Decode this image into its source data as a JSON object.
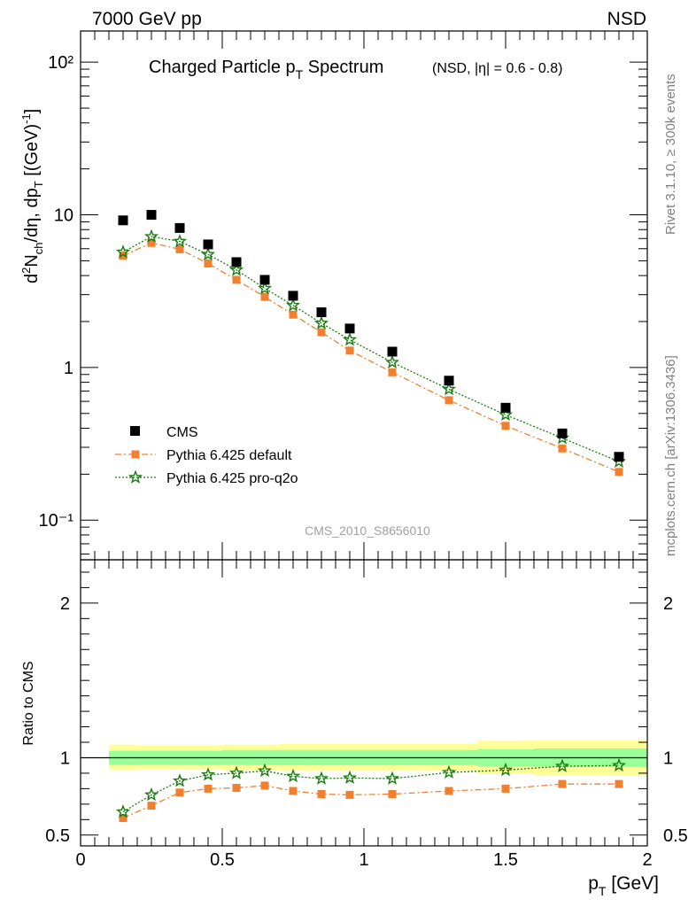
{
  "header": {
    "left": "7000 GeV pp",
    "right": "NSD"
  },
  "side_text": {
    "rivet": "Rivet 3.1.10, ≥ 300k events",
    "mcplots": "mcplots.cern.ch [arXiv:1306.3436]"
  },
  "title": {
    "main_a": "Charged Particle p",
    "main_sub": "T",
    "main_b": " Spectrum",
    "qualifier": "(NSD, |η| = 0.6 - 0.8)"
  },
  "watermark": "CMS_2010_S8656010",
  "ylabel_top": {
    "a": "d",
    "sup2": "2",
    "b": "N",
    "sub_ch": "ch",
    "c": "/dη, dp",
    "sub_t": "T",
    "d": " [(GeV)",
    "sup_exp": "-1",
    "e": "]"
  },
  "ylabel_bottom": "Ratio to CMS",
  "xlabel": {
    "a": "p",
    "sub": "T",
    "b": " [GeV]"
  },
  "legend": [
    {
      "label": "CMS",
      "series": "cms"
    },
    {
      "label": "Pythia 6.425 default",
      "series": "default"
    },
    {
      "label": "Pythia 6.425 pro-q2o",
      "series": "proq2o"
    }
  ],
  "colors": {
    "cms": "#000000",
    "default": "#f08030",
    "proq2o": "#1a7a10",
    "band_inner": "#99ff99",
    "band_outer": "#ffff99"
  },
  "chart_data": [
    {
      "type": "scatter",
      "panel": "main",
      "yscale": "log",
      "xlim": [
        0,
        2.0
      ],
      "ylim": [
        0.055,
        160
      ],
      "x_ticks": [],
      "y_tick_labels": [
        "10⁻¹",
        "1",
        "10",
        "10²"
      ],
      "y_tick_values": [
        0.1,
        1,
        10,
        100
      ],
      "x": [
        0.15,
        0.25,
        0.35,
        0.45,
        0.55,
        0.65,
        0.75,
        0.85,
        0.95,
        1.1,
        1.3,
        1.5,
        1.7,
        1.9
      ],
      "x_lo": [
        0.1,
        0.2,
        0.3,
        0.4,
        0.5,
        0.6,
        0.7,
        0.8,
        0.9,
        1.0,
        1.2,
        1.4,
        1.6,
        1.8
      ],
      "x_hi": [
        0.2,
        0.3,
        0.4,
        0.5,
        0.6,
        0.7,
        0.8,
        0.9,
        1.0,
        1.2,
        1.4,
        1.6,
        1.8,
        2.0
      ],
      "series": [
        {
          "name": "CMS",
          "key": "cms",
          "values": [
            9.2,
            10.0,
            8.2,
            6.4,
            4.9,
            3.75,
            2.95,
            2.3,
            1.8,
            1.27,
            0.82,
            0.545,
            0.37,
            0.26
          ]
        },
        {
          "name": "Pythia 6.425 default",
          "key": "default",
          "values": [
            5.4,
            6.55,
            5.95,
            4.8,
            3.75,
            2.9,
            2.22,
            1.7,
            1.29,
            0.93,
            0.61,
            0.415,
            0.295,
            0.207
          ]
        },
        {
          "name": "Pythia 6.425 pro-q2o",
          "key": "proq2o",
          "values": [
            5.7,
            7.2,
            6.7,
            5.5,
            4.35,
            3.3,
            2.55,
            1.95,
            1.52,
            1.08,
            0.72,
            0.49,
            0.345,
            0.242
          ]
        }
      ]
    },
    {
      "type": "line",
      "panel": "ratio",
      "xlim": [
        0,
        2.0
      ],
      "ylim": [
        0.43,
        2.28
      ],
      "ylabel": "Ratio to CMS",
      "xlabel": "p_T [GeV]",
      "x_ticks": [
        0,
        0.5,
        1,
        1.5,
        2
      ],
      "x_tick_labels": [
        "0",
        "0.5",
        "1",
        "1.5",
        "2"
      ],
      "y_ticks": [
        0.5,
        1,
        2
      ],
      "y_tick_labels": [
        "0.5",
        "1",
        "2"
      ],
      "x": [
        0.15,
        0.25,
        0.35,
        0.45,
        0.55,
        0.65,
        0.75,
        0.85,
        0.95,
        1.1,
        1.3,
        1.5,
        1.7,
        1.9
      ],
      "band_inner": [
        [
          0.955,
          1.045
        ],
        [
          0.955,
          1.045
        ],
        [
          0.955,
          1.045
        ],
        [
          0.955,
          1.045
        ],
        [
          0.955,
          1.05
        ],
        [
          0.953,
          1.05
        ],
        [
          0.953,
          1.05
        ],
        [
          0.953,
          1.05
        ],
        [
          0.953,
          1.05
        ],
        [
          0.953,
          1.05
        ],
        [
          0.953,
          1.05
        ],
        [
          0.945,
          1.055
        ],
        [
          0.94,
          1.06
        ],
        [
          0.94,
          1.06
        ]
      ],
      "band_outer": [
        [
          0.92,
          1.085
        ],
        [
          0.925,
          1.08
        ],
        [
          0.925,
          1.08
        ],
        [
          0.925,
          1.08
        ],
        [
          0.92,
          1.085
        ],
        [
          0.92,
          1.085
        ],
        [
          0.915,
          1.09
        ],
        [
          0.915,
          1.09
        ],
        [
          0.915,
          1.09
        ],
        [
          0.915,
          1.09
        ],
        [
          0.915,
          1.09
        ],
        [
          0.895,
          1.11
        ],
        [
          0.885,
          1.115
        ],
        [
          0.885,
          1.115
        ]
      ],
      "series": [
        {
          "name": "Pythia 6.425 default",
          "key": "default",
          "values": [
            0.61,
            0.69,
            0.775,
            0.8,
            0.805,
            0.82,
            0.785,
            0.765,
            0.76,
            0.765,
            0.785,
            0.8,
            0.83,
            0.83
          ]
        },
        {
          "name": "Pythia 6.425 pro-q2o",
          "key": "proq2o",
          "values": [
            0.65,
            0.76,
            0.85,
            0.89,
            0.9,
            0.915,
            0.88,
            0.865,
            0.87,
            0.865,
            0.905,
            0.92,
            0.945,
            0.95
          ]
        }
      ]
    }
  ]
}
